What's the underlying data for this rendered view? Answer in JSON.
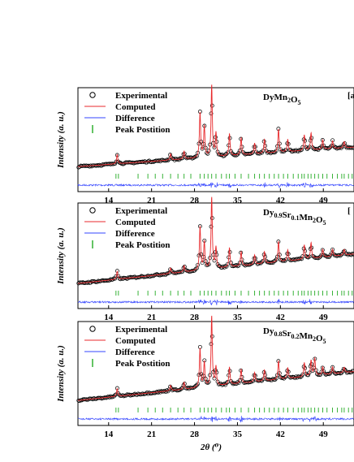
{
  "chart_data": [
    {
      "type": "line",
      "title": "DyMn2O5",
      "title_parts": [
        [
          "DyMn",
          ""
        ],
        [
          "2",
          "sub"
        ],
        [
          "O",
          ""
        ],
        [
          "5",
          "sub"
        ]
      ],
      "panel_letter": "[a",
      "ylabel": "Intensity (a. u.)",
      "xlabel": "",
      "x_ticks": [
        14,
        21,
        28,
        35,
        42,
        49
      ],
      "xlim": [
        9,
        54
      ],
      "legend": [
        "Experimental",
        "Computed",
        "Difference",
        "Peak Postition"
      ],
      "colors": {
        "experimental": "#000000",
        "computed": "#e8292c",
        "difference": "#3344ff",
        "peaks": "#22aa22"
      },
      "background": [
        [
          9,
          0.05
        ],
        [
          54,
          0.3
        ]
      ],
      "peaks": [
        [
          15.4,
          0.12
        ],
        [
          24.1,
          0.08
        ],
        [
          26.3,
          0.1
        ],
        [
          28.9,
          0.58
        ],
        [
          29.6,
          0.4
        ],
        [
          30.8,
          0.92
        ],
        [
          31.5,
          0.3
        ],
        [
          33.7,
          0.28
        ],
        [
          35.6,
          0.22
        ],
        [
          37.8,
          0.14
        ],
        [
          39.4,
          0.18
        ],
        [
          41.7,
          0.3
        ],
        [
          43.2,
          0.16
        ],
        [
          45.9,
          0.2
        ],
        [
          47.0,
          0.22
        ],
        [
          48.9,
          0.12
        ],
        [
          50.5,
          0.1
        ],
        [
          52.4,
          0.08
        ]
      ],
      "peak_positions": [
        15.2,
        15.6,
        18.8,
        20.4,
        21.6,
        22.8,
        24.1,
        25.3,
        26.3,
        27.4,
        28.9,
        29.6,
        30.2,
        30.8,
        31.5,
        32.4,
        33.2,
        33.7,
        34.6,
        35.6,
        36.8,
        37.8,
        38.6,
        39.4,
        40.2,
        41.0,
        41.7,
        42.5,
        43.2,
        44.1,
        44.9,
        45.5,
        45.9,
        46.5,
        47.0,
        47.6,
        48.2,
        48.9,
        49.6,
        50.5,
        51.3,
        52.0,
        52.4,
        53.1,
        53.7
      ]
    },
    {
      "type": "line",
      "title": "Dy0.9Sr0.1Mn2O5",
      "title_parts": [
        [
          "Dy",
          ""
        ],
        [
          "0.9",
          "sub"
        ],
        [
          "Sr",
          ""
        ],
        [
          "0.1",
          "sub"
        ],
        [
          "Mn",
          ""
        ],
        [
          "2",
          "sub"
        ],
        [
          "O",
          ""
        ],
        [
          "5",
          "sub"
        ]
      ],
      "panel_letter": "[",
      "ylabel": "Intensity (a. u.)",
      "xlabel": "",
      "x_ticks": [
        14,
        21,
        28,
        35,
        42,
        49
      ],
      "xlim": [
        9,
        54
      ],
      "legend": [
        "Experimental",
        "Computed",
        "Difference",
        "Peak Postition"
      ],
      "colors": {
        "experimental": "#000000",
        "computed": "#e8292c",
        "difference": "#3344ff",
        "peaks": "#22aa22"
      },
      "background": [
        [
          9,
          0.05
        ],
        [
          54,
          0.42
        ]
      ],
      "peaks": [
        [
          15.4,
          0.1
        ],
        [
          24.1,
          0.07
        ],
        [
          26.3,
          0.08
        ],
        [
          28.9,
          0.55
        ],
        [
          29.6,
          0.35
        ],
        [
          30.8,
          0.9
        ],
        [
          31.5,
          0.26
        ],
        [
          33.7,
          0.24
        ],
        [
          35.6,
          0.18
        ],
        [
          37.8,
          0.12
        ],
        [
          39.4,
          0.15
        ],
        [
          41.7,
          0.26
        ],
        [
          43.2,
          0.14
        ],
        [
          45.9,
          0.18
        ],
        [
          47.0,
          0.2
        ],
        [
          48.9,
          0.1
        ],
        [
          50.5,
          0.09
        ],
        [
          52.4,
          0.07
        ]
      ],
      "peak_positions": [
        15.2,
        15.6,
        18.8,
        20.4,
        21.6,
        22.8,
        24.1,
        25.3,
        26.3,
        27.4,
        28.9,
        29.6,
        30.2,
        30.8,
        31.5,
        32.4,
        33.2,
        33.7,
        34.6,
        35.6,
        36.8,
        37.8,
        38.6,
        39.4,
        40.2,
        41.0,
        41.7,
        42.5,
        43.2,
        44.1,
        44.9,
        45.5,
        45.9,
        46.5,
        47.0,
        47.6,
        48.2,
        48.9,
        49.6,
        50.5,
        51.3,
        52.0,
        52.4,
        53.1,
        53.7
      ]
    },
    {
      "type": "line",
      "title": "Dy0.8Sr0.2Mn2O5",
      "title_parts": [
        [
          "Dy",
          ""
        ],
        [
          "0.8",
          "sub"
        ],
        [
          "Sr",
          ""
        ],
        [
          "0.2",
          "sub"
        ],
        [
          "Mn",
          ""
        ],
        [
          "2",
          "sub"
        ],
        [
          "O",
          ""
        ],
        [
          "5",
          "sub"
        ]
      ],
      "panel_letter": "",
      "ylabel": "Intensity (a. u.)",
      "xlabel": "2θ (⁰)",
      "x_ticks": [
        14,
        21,
        28,
        35,
        42,
        49
      ],
      "xlim": [
        9,
        54
      ],
      "legend": [
        "Experimental",
        "Computed",
        "Difference",
        "Peak Postition"
      ],
      "colors": {
        "experimental": "#000000",
        "computed": "#e8292c",
        "difference": "#3344ff",
        "peaks": "#22aa22"
      },
      "background": [
        [
          9,
          0.05
        ],
        [
          54,
          0.42
        ]
      ],
      "peaks": [
        [
          15.4,
          0.1
        ],
        [
          24.1,
          0.07
        ],
        [
          26.3,
          0.09
        ],
        [
          28.9,
          0.5
        ],
        [
          29.6,
          0.32
        ],
        [
          30.8,
          0.9
        ],
        [
          31.5,
          0.24
        ],
        [
          33.7,
          0.22
        ],
        [
          35.6,
          0.18
        ],
        [
          37.8,
          0.12
        ],
        [
          39.4,
          0.14
        ],
        [
          41.7,
          0.24
        ],
        [
          43.2,
          0.14
        ],
        [
          45.9,
          0.18
        ],
        [
          47.0,
          0.2
        ],
        [
          47.6,
          0.22
        ],
        [
          48.9,
          0.1
        ],
        [
          50.5,
          0.09
        ],
        [
          52.4,
          0.07
        ]
      ],
      "peak_positions": [
        15.2,
        15.6,
        18.8,
        20.4,
        21.6,
        22.8,
        24.1,
        25.3,
        26.3,
        27.4,
        28.9,
        29.6,
        30.2,
        30.8,
        31.5,
        32.4,
        33.2,
        33.7,
        34.6,
        35.6,
        36.8,
        37.8,
        38.6,
        39.4,
        40.2,
        41.0,
        41.7,
        42.5,
        43.2,
        44.1,
        44.9,
        45.5,
        45.9,
        46.5,
        47.0,
        47.6,
        48.2,
        48.9,
        49.6,
        50.5,
        51.3,
        52.0,
        52.4,
        53.1,
        53.7
      ]
    }
  ]
}
